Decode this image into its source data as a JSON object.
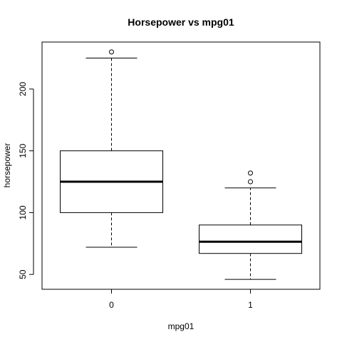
{
  "chart_data": {
    "type": "boxplot",
    "title": "Horsepower vs mpg01",
    "xlabel": "mpg01",
    "ylabel": "horsepower",
    "categories": [
      "0",
      "1"
    ],
    "ylim": [
      38,
      238
    ],
    "yticks": [
      50,
      100,
      150,
      200
    ],
    "grid": false,
    "legend": "none",
    "boxes": [
      {
        "category": "0",
        "min": 72,
        "q1": 100,
        "median": 125,
        "q3": 150,
        "max": 225,
        "outliers": [
          230
        ]
      },
      {
        "category": "1",
        "min": 46,
        "q1": 67,
        "median": 76.5,
        "q3": 90,
        "max": 120,
        "outliers": [
          125,
          132
        ]
      }
    ]
  }
}
